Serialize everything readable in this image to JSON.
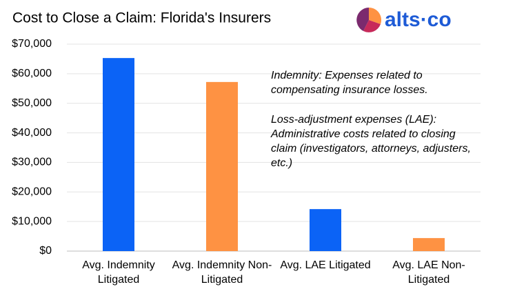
{
  "chart_data": {
    "type": "bar",
    "title": "Cost to Close a Claim: Florida's Insurers",
    "logo": "alts·co",
    "categories": [
      "Avg. Indemnity Litigated",
      "Avg. Indemnity Non-Litigated",
      "Avg. LAE Litigated",
      "Avg. LAE Non-Litigated"
    ],
    "values": [
      65300,
      57200,
      14200,
      4400
    ],
    "colors": [
      "#0b63f6",
      "#fe9243",
      "#0b63f6",
      "#fe9243"
    ],
    "ylim": [
      0,
      70000
    ],
    "yticks": [
      {
        "value": 0,
        "label": "$0"
      },
      {
        "value": 10000,
        "label": "$10,000"
      },
      {
        "value": 20000,
        "label": "$20,000"
      },
      {
        "value": 30000,
        "label": "$30,000"
      },
      {
        "value": 40000,
        "label": "$40,000"
      },
      {
        "value": 50000,
        "label": "$50,000"
      },
      {
        "value": 60000,
        "label": "$60,000"
      },
      {
        "value": 70000,
        "label": "$70,000"
      }
    ],
    "grid": true,
    "annotations": [
      [
        "Indemnity: Expenses related to",
        "compensating insurance losses."
      ],
      [
        "Loss-adjustment expenses (LAE):",
        "Administrative costs related to closing",
        "claim (investigators, attorneys, adjusters,",
        "etc.)"
      ]
    ]
  }
}
